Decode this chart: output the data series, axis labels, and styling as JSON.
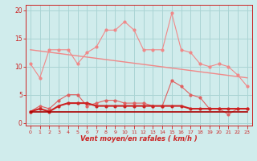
{
  "x": [
    0,
    1,
    2,
    3,
    4,
    5,
    6,
    7,
    8,
    9,
    10,
    11,
    12,
    13,
    14,
    15,
    16,
    17,
    18,
    19,
    20,
    21,
    22,
    23
  ],
  "line1": [
    10.5,
    8.0,
    13.0,
    13.0,
    13.0,
    10.5,
    12.5,
    13.5,
    16.5,
    16.5,
    18.0,
    16.5,
    13.0,
    13.0,
    13.0,
    19.5,
    13.0,
    12.5,
    10.5,
    10.0,
    10.5,
    10.0,
    8.5,
    6.5
  ],
  "line2_x": [
    0,
    23
  ],
  "line2_y": [
    13.0,
    8.0
  ],
  "line3": [
    2.0,
    3.0,
    2.5,
    4.0,
    5.0,
    5.0,
    3.0,
    3.5,
    4.0,
    4.0,
    3.5,
    3.5,
    3.5,
    3.0,
    3.0,
    7.5,
    6.5,
    5.0,
    4.5,
    2.5,
    2.5,
    1.5,
    2.5,
    2.5
  ],
  "line4": [
    2.0,
    2.5,
    2.0,
    3.0,
    3.5,
    3.5,
    3.5,
    3.0,
    3.0,
    3.0,
    3.0,
    3.0,
    3.0,
    3.0,
    3.0,
    3.0,
    3.0,
    2.5,
    2.5,
    2.5,
    2.5,
    2.5,
    2.5,
    2.5
  ],
  "line5": [
    2.0,
    2.0,
    2.0,
    2.0,
    2.0,
    2.0,
    2.0,
    2.0,
    2.0,
    2.0,
    2.0,
    2.0,
    2.0,
    2.0,
    2.0,
    2.0,
    2.0,
    2.0,
    2.0,
    2.0,
    2.0,
    2.0,
    2.0,
    2.0
  ],
  "color_light": "#f08888",
  "color_medium": "#e06060",
  "color_dark": "#cc2222",
  "color_baseline": "#aa0000",
  "bg_color": "#d0ecec",
  "grid_color": "#aad4d4",
  "xlabel": "Vent moyen/en rafales ( km/h )",
  "ylabel_ticks": [
    0,
    5,
    10,
    15,
    20
  ],
  "xlim": [
    -0.5,
    23.5
  ],
  "ylim": [
    -0.5,
    21
  ]
}
